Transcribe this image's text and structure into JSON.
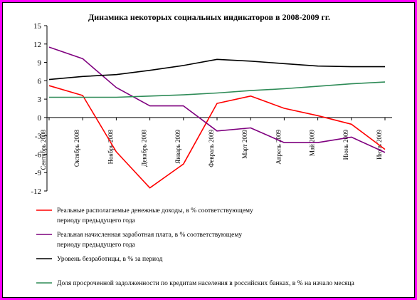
{
  "chart_data": {
    "type": "line",
    "title": "Динамика некоторых социальных индикаторов в 2008-2009 гг.",
    "xlabel": "",
    "ylabel": "",
    "ylim": [
      -12,
      15
    ],
    "yticks": [
      15,
      12,
      9,
      6,
      3,
      0,
      -3,
      -6,
      -9,
      -12
    ],
    "grid": false,
    "legend_position": "bottom",
    "categories": [
      "Сентябрь 2008",
      "Октябрь 2008",
      "Ноябрь 2008",
      "Декабрь 2008",
      "Январь 2009",
      "Февраль 2009",
      "Март 2009",
      "Апрель 2009",
      "Май 2009",
      "Июнь 2009",
      "Июль 2009"
    ],
    "series": [
      {
        "legend_lines": [
          "Реальные располагаемые денежные доходы, в % соответствующему",
          "периоду предыдущего года"
        ],
        "color": "#ff0000",
        "values": [
          5.2,
          3.6,
          -5.6,
          -11.5,
          -7.6,
          2.3,
          3.5,
          1.5,
          0.3,
          -1.1,
          -5.2
        ]
      },
      {
        "legend_lines": [
          "Реальная начисленная заработная плата, в % соответствующему",
          "периоду предыдущего года"
        ],
        "color": "#7f007f",
        "values": [
          11.5,
          9.6,
          4.9,
          1.9,
          1.9,
          -2.2,
          -1.7,
          -4.1,
          -4.1,
          -3.2,
          -5.7
        ]
      },
      {
        "legend_lines": [
          "Уровень безработицы, в % за период"
        ],
        "color": "#000000",
        "values": [
          6.2,
          6.7,
          7.0,
          7.7,
          8.5,
          9.5,
          9.2,
          8.8,
          8.4,
          8.3,
          8.3
        ]
      },
      {
        "legend_lines": [
          "Доля просроченной задолженности по кредитам населения в российских банках, в % на начало месяца"
        ],
        "color": "#2e8b57",
        "values": [
          3.3,
          3.3,
          3.3,
          3.5,
          3.7,
          4.0,
          4.4,
          4.7,
          5.1,
          5.5,
          5.8
        ]
      }
    ]
  }
}
